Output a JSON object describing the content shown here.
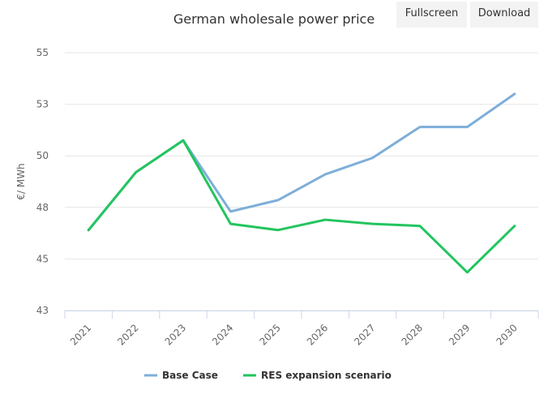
{
  "toolbar": {
    "fullscreen_label": "Fullscreen",
    "download_label": "Download"
  },
  "chart_data": {
    "type": "line",
    "title": "German wholesale power price",
    "xlabel": "",
    "ylabel": "€/ MWh",
    "categories": [
      "2021",
      "2022",
      "2023",
      "2024",
      "2025",
      "2026",
      "2027",
      "2028",
      "2029",
      "2030"
    ],
    "ylim": [
      42.5,
      55
    ],
    "yticks": [
      42.5,
      45,
      47.5,
      50,
      52.5,
      55
    ],
    "ytick_labels": [
      "43",
      "45",
      "48",
      "50",
      "53",
      "55"
    ],
    "grid": true,
    "legend": "bottom-center",
    "series": [
      {
        "name": "Base Case",
        "color": "#7eaed9",
        "values": [
          46.4,
          49.2,
          50.75,
          47.3,
          47.85,
          49.1,
          49.9,
          51.4,
          51.4,
          53.0
        ]
      },
      {
        "name": "RES expansion scenario",
        "color": "#22c55e",
        "values": [
          46.4,
          49.2,
          50.75,
          46.7,
          46.4,
          46.9,
          46.7,
          46.6,
          44.35,
          46.6
        ]
      }
    ]
  }
}
